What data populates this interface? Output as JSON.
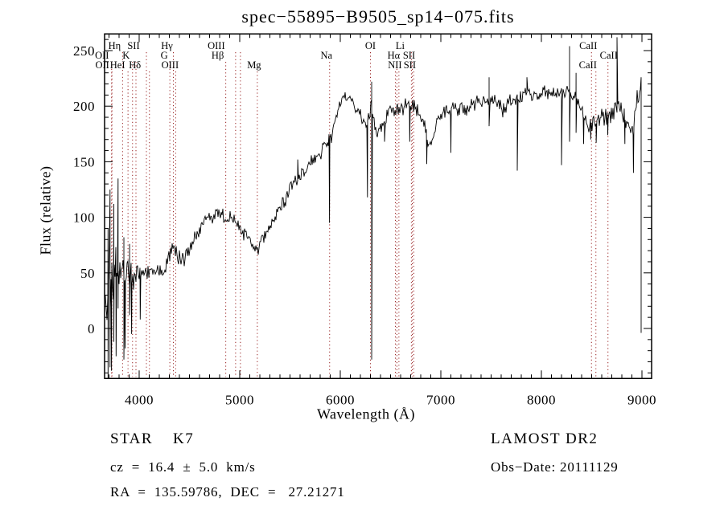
{
  "title": "spec−55895−B9505_sp14−075.fits",
  "footer": {
    "class_label": "STAR    K7",
    "cz_label": "cz  =  16.4  ±  5.0  km/s",
    "radec_label": "RA  =  135.59786,  DEC  =   27.21271",
    "survey": "LAMOST DR2",
    "obs_date": "Obs−Date: 20111129"
  },
  "colors": {
    "background": "#ffffff",
    "spectrum": "#000000",
    "line_marker": "#992222",
    "frame": "#000000"
  },
  "chart_data": {
    "type": "line",
    "title": "spec−55895−B9505_sp14−075.fits",
    "xlabel": "Wavelength (Å)",
    "ylabel": "Flux (relative)",
    "xlim": [
      3656,
      9096
    ],
    "ylim": [
      -45,
      265
    ],
    "x_major_ticks": [
      4000,
      5000,
      6000,
      7000,
      8000,
      9000
    ],
    "x_minor_step": 100,
    "y_major_ticks": [
      0,
      50,
      100,
      150,
      200,
      250
    ],
    "y_minor_step": 10,
    "grid": false,
    "series_range": [
      3656,
      8988
    ],
    "continuum": [
      [
        3656,
        40
      ],
      [
        3700,
        46
      ],
      [
        3760,
        52
      ],
      [
        3820,
        50
      ],
      [
        3900,
        48
      ],
      [
        4000,
        48
      ],
      [
        4100,
        50
      ],
      [
        4200,
        52
      ],
      [
        4250,
        52
      ],
      [
        4310,
        66
      ],
      [
        4345,
        76
      ],
      [
        4390,
        60
      ],
      [
        4450,
        64
      ],
      [
        4520,
        76
      ],
      [
        4600,
        90
      ],
      [
        4700,
        100
      ],
      [
        4780,
        105
      ],
      [
        4861,
        96
      ],
      [
        4910,
        100
      ],
      [
        4960,
        95
      ],
      [
        5010,
        90
      ],
      [
        5090,
        82
      ],
      [
        5170,
        70
      ],
      [
        5250,
        84
      ],
      [
        5350,
        100
      ],
      [
        5450,
        116
      ],
      [
        5550,
        131
      ],
      [
        5650,
        143
      ],
      [
        5750,
        152
      ],
      [
        5820,
        158
      ],
      [
        5870,
        167
      ],
      [
        5910,
        172
      ],
      [
        5960,
        192
      ],
      [
        6020,
        208
      ],
      [
        6080,
        210
      ],
      [
        6140,
        202
      ],
      [
        6200,
        192
      ],
      [
        6252,
        178
      ],
      [
        6310,
        200
      ],
      [
        6360,
        176
      ],
      [
        6420,
        186
      ],
      [
        6480,
        194
      ],
      [
        6550,
        196
      ],
      [
        6620,
        199
      ],
      [
        6700,
        202
      ],
      [
        6780,
        197
      ],
      [
        6840,
        180
      ],
      [
        6880,
        162
      ],
      [
        6920,
        172
      ],
      [
        6980,
        190
      ],
      [
        7050,
        196
      ],
      [
        7120,
        199
      ],
      [
        7200,
        196
      ],
      [
        7300,
        200
      ],
      [
        7400,
        204
      ],
      [
        7500,
        206
      ],
      [
        7570,
        201
      ],
      [
        7620,
        197
      ],
      [
        7680,
        205
      ],
      [
        7760,
        208
      ],
      [
        7850,
        211
      ],
      [
        7950,
        209
      ],
      [
        8050,
        212
      ],
      [
        8150,
        209
      ],
      [
        8250,
        213
      ],
      [
        8310,
        211
      ],
      [
        8380,
        198
      ],
      [
        8450,
        186
      ],
      [
        8520,
        182
      ],
      [
        8600,
        190
      ],
      [
        8660,
        186
      ],
      [
        8700,
        193
      ],
      [
        8760,
        201
      ],
      [
        8820,
        190
      ],
      [
        8870,
        180
      ],
      [
        8910,
        178
      ],
      [
        8950,
        205
      ],
      [
        8988,
        215
      ]
    ],
    "noise_segments": [
      [
        3656,
        3720,
        52
      ],
      [
        3720,
        3800,
        38
      ],
      [
        3800,
        3900,
        22
      ],
      [
        3900,
        4000,
        15
      ],
      [
        4000,
        4300,
        11
      ],
      [
        4300,
        4700,
        10
      ],
      [
        4700,
        5300,
        9
      ],
      [
        5300,
        5900,
        8
      ],
      [
        5900,
        6300,
        7
      ],
      [
        6300,
        6900,
        8
      ],
      [
        6900,
        7600,
        8
      ],
      [
        7600,
        8300,
        8
      ],
      [
        8300,
        8700,
        12
      ],
      [
        8700,
        8990,
        11
      ]
    ],
    "spikes": [
      [
        3690,
        90,
        -45
      ],
      [
        3710,
        125,
        -35
      ],
      [
        3725,
        null,
        -38
      ],
      [
        3748,
        112,
        -12
      ],
      [
        3770,
        null,
        -25
      ],
      [
        3790,
        135,
        18
      ],
      [
        3848,
        82,
        -28
      ],
      [
        3860,
        null,
        -18
      ],
      [
        3905,
        76,
        12
      ],
      [
        3925,
        null,
        -5
      ],
      [
        4010,
        null,
        8
      ],
      [
        5577,
        152,
        null
      ],
      [
        5893,
        null,
        95
      ],
      [
        6270,
        null,
        118
      ],
      [
        6312,
        222,
        -28
      ],
      [
        6440,
        null,
        168
      ],
      [
        6690,
        null,
        168
      ],
      [
        6860,
        null,
        148
      ],
      [
        7100,
        null,
        158
      ],
      [
        7480,
        226,
        182
      ],
      [
        7760,
        null,
        142
      ],
      [
        7856,
        226,
        null
      ],
      [
        8200,
        null,
        147
      ],
      [
        8280,
        254,
        168
      ],
      [
        8345,
        230,
        176
      ],
      [
        8420,
        null,
        166
      ],
      [
        8490,
        null,
        170
      ],
      [
        8545,
        null,
        167
      ],
      [
        8660,
        null,
        174
      ],
      [
        8752,
        262,
        null
      ],
      [
        8830,
        null,
        166
      ],
      [
        8915,
        null,
        140
      ],
      [
        8992,
        226,
        -4
      ]
    ],
    "spectral_lines": [
      {
        "label": "Hη",
        "wavelength": 3835,
        "row": 1,
        "dx": -10
      },
      {
        "label": "SII",
        "wavelength": 4072,
        "row": 1,
        "dx": -16
      },
      {
        "label": "Hγ",
        "wavelength": 4340,
        "row": 1,
        "dx": -8
      },
      {
        "label": "OIII",
        "wavelength": 4959,
        "row": 1,
        "dx": -24
      },
      {
        "label": "",
        "wavelength": 5007,
        "row": 1,
        "dx": 0
      },
      {
        "label": "OI",
        "wavelength": 6300,
        "row": 1,
        "dx": 0
      },
      {
        "label": "Li",
        "wavelength": 6707,
        "row": 1,
        "dx": -14
      },
      {
        "label": "CaII",
        "wavelength": 8498,
        "row": 1,
        "dx": -4
      },
      {
        "label": "OII",
        "wavelength": 3726,
        "row": 2,
        "dx": -12
      },
      {
        "label": "K",
        "wavelength": 3934,
        "row": 2,
        "dx": -8
      },
      {
        "label": "",
        "wavelength": 3968,
        "row": 2,
        "dx": 0
      },
      {
        "label": "G",
        "wavelength": 4305,
        "row": 2,
        "dx": -7
      },
      {
        "label": "Hβ",
        "wavelength": 4861,
        "row": 2,
        "dx": -10
      },
      {
        "label": "Na",
        "wavelength": 5894,
        "row": 2,
        "dx": -4
      },
      {
        "label": "Hα",
        "wavelength": 6563,
        "row": 2,
        "dx": -4
      },
      {
        "label": "SII",
        "wavelength": 6716,
        "row": 2,
        "dx": -4
      },
      {
        "label": "CaII",
        "wavelength": 8662,
        "row": 2,
        "dx": 1
      },
      {
        "label": "OII",
        "wavelength": 3729,
        "row": 3,
        "dx": -12
      },
      {
        "label": "HeI",
        "wavelength": 3889,
        "row": 3,
        "dx": -13
      },
      {
        "label": "Hδ",
        "wavelength": 4102,
        "row": 3,
        "dx": -18
      },
      {
        "label": "OIII",
        "wavelength": 4363,
        "row": 3,
        "dx": -7
      },
      {
        "label": "Mg",
        "wavelength": 5175,
        "row": 3,
        "dx": -4
      },
      {
        "label": "",
        "wavelength": 6548,
        "row": 3,
        "dx": 0
      },
      {
        "label": "NII",
        "wavelength": 6583,
        "row": 3,
        "dx": -5
      },
      {
        "label": "SII",
        "wavelength": 6731,
        "row": 3,
        "dx": -5
      },
      {
        "label": "CaII",
        "wavelength": 8542,
        "row": 3,
        "dx": -10
      }
    ]
  }
}
